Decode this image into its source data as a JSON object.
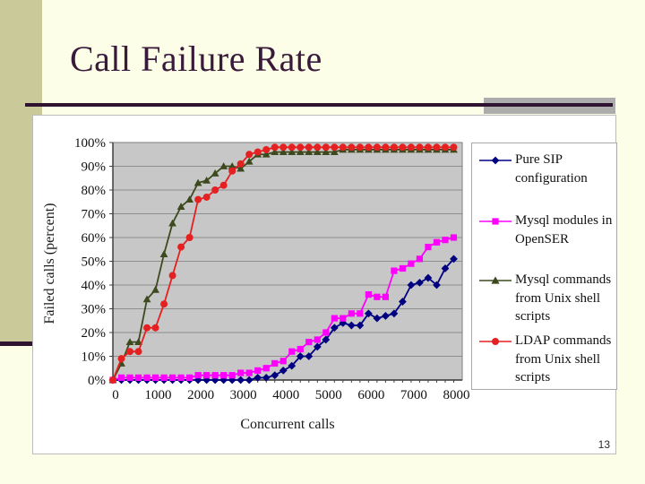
{
  "slide": {
    "title": "Call Failure Rate",
    "page_number": "13"
  },
  "chart_data": {
    "type": "line",
    "title": "",
    "xlabel": "Concurrent calls",
    "ylabel": "Failed calls (percent)",
    "legend_position": "right",
    "grid": true,
    "plot_bg": "#c7c7c7",
    "grid_color": "#8e8e8e",
    "xlim": [
      0,
      8200
    ],
    "ylim": [
      0,
      100
    ],
    "x_ticks": [
      0,
      1000,
      2000,
      3000,
      4000,
      5000,
      6000,
      7000,
      8000
    ],
    "y_ticks_percent": [
      0,
      10,
      20,
      30,
      40,
      50,
      60,
      70,
      80,
      90,
      100
    ],
    "x": [
      0,
      200,
      400,
      600,
      800,
      1000,
      1200,
      1400,
      1600,
      1800,
      2000,
      2200,
      2400,
      2600,
      2800,
      3000,
      3200,
      3400,
      3600,
      3800,
      4000,
      4200,
      4400,
      4600,
      4800,
      5000,
      5200,
      5400,
      5600,
      5800,
      6000,
      6200,
      6400,
      6600,
      6800,
      7000,
      7200,
      7400,
      7600,
      7800,
      8000
    ],
    "series": [
      {
        "name": "Pure SIP configuration",
        "color": "#000080",
        "marker": "diamond",
        "values": [
          0,
          0,
          0,
          0,
          0,
          0,
          0,
          0,
          0,
          0,
          0,
          0,
          0,
          0,
          0,
          0,
          0,
          1,
          1,
          2,
          4,
          6,
          10,
          10,
          14,
          17,
          22,
          24,
          23,
          23,
          28,
          26,
          27,
          28,
          33,
          40,
          41,
          43,
          40,
          47,
          51
        ]
      },
      {
        "name": "Mysql modules in OpenSER",
        "color": "#ff00ff",
        "marker": "square",
        "values": [
          0,
          1,
          1,
          1,
          1,
          1,
          1,
          1,
          1,
          1,
          2,
          2,
          2,
          2,
          2,
          3,
          3,
          4,
          5,
          7,
          8,
          12,
          13,
          16,
          17,
          20,
          26,
          26,
          28,
          28,
          36,
          35,
          35,
          46,
          47,
          49,
          51,
          56,
          58,
          59,
          60
        ]
      },
      {
        "name": "Mysql commands from Unix shell scripts",
        "color": "#3c4a1e",
        "marker": "triangle",
        "values": [
          0,
          7,
          16,
          16,
          34,
          38,
          53,
          66,
          73,
          76,
          83,
          84,
          87,
          90,
          90,
          89,
          92,
          95,
          95,
          96,
          96,
          96,
          96,
          96,
          96,
          96,
          96,
          97,
          97,
          97,
          97,
          97,
          97,
          97,
          97,
          97,
          97,
          97,
          97,
          97,
          97
        ]
      },
      {
        "name": "LDAP commands from Unix shell scripts",
        "color": "#e52020",
        "marker": "circle",
        "values": [
          0,
          9,
          12,
          12,
          22,
          22,
          32,
          44,
          56,
          60,
          76,
          77,
          80,
          82,
          88,
          91,
          95,
          96,
          97,
          98,
          98,
          98,
          98,
          98,
          98,
          98,
          98,
          98,
          98,
          98,
          98,
          98,
          98,
          98,
          98,
          98,
          98,
          98,
          98,
          98,
          98
        ]
      }
    ]
  }
}
